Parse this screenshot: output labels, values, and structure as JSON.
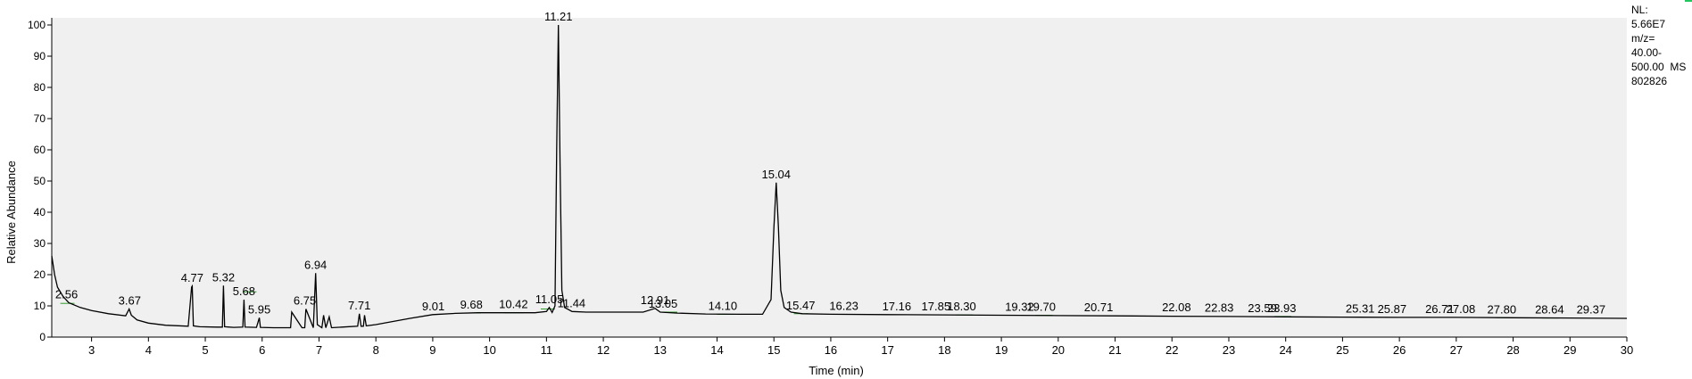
{
  "side_panel": {
    "nl_label": "NL:",
    "nl_value": "5.66E7",
    "mz_label": "m/z=",
    "mz_range_start": "40.00-",
    "mz_range_end": "500.00",
    "scan_type": "MS",
    "file_id": "802826"
  },
  "colors": {
    "plot_background": "#f0f0f0",
    "trace": "#000000",
    "baseline_marks": "#2e9b2e",
    "corner_mark": "#22c55e"
  },
  "chart_data": {
    "type": "line",
    "title": "",
    "xlabel": "Time (min)",
    "ylabel": "Relative Abundance",
    "xlim": [
      2.3,
      30
    ],
    "ylim": [
      0,
      100
    ],
    "xticks": [
      3,
      4,
      5,
      6,
      7,
      8,
      9,
      10,
      11,
      12,
      13,
      14,
      15,
      16,
      17,
      18,
      19,
      20,
      21,
      22,
      23,
      24,
      25,
      26,
      27,
      28,
      29,
      30
    ],
    "yticks": [
      0,
      10,
      20,
      30,
      40,
      50,
      60,
      70,
      80,
      90,
      100
    ],
    "grid": false,
    "legend": "none",
    "trace": {
      "x": [
        2.3,
        2.35,
        2.4,
        2.5,
        2.6,
        2.8,
        3.0,
        3.3,
        3.6,
        3.66,
        3.7,
        3.8,
        4.0,
        4.3,
        4.7,
        4.76,
        4.77,
        4.79,
        4.9,
        5.2,
        5.3,
        5.32,
        5.34,
        5.5,
        5.66,
        5.68,
        5.7,
        5.9,
        5.95,
        5.97,
        6.2,
        6.5,
        6.52,
        6.7,
        6.75,
        6.77,
        6.9,
        6.94,
        6.97,
        7.05,
        7.08,
        7.12,
        7.18,
        7.22,
        7.4,
        7.68,
        7.71,
        7.74,
        7.78,
        7.8,
        7.83,
        8.0,
        8.3,
        8.6,
        9.0,
        9.4,
        9.8,
        10.3,
        10.8,
        11.0,
        11.05,
        11.1,
        11.15,
        11.18,
        11.21,
        11.24,
        11.27,
        11.32,
        11.45,
        11.7,
        12.2,
        12.7,
        12.91,
        13.0,
        13.3,
        13.8,
        14.4,
        14.8,
        14.95,
        15.0,
        15.04,
        15.08,
        15.12,
        15.18,
        15.3,
        15.5,
        16.0,
        17.0,
        18.0,
        19.0,
        20.0,
        21.0,
        22.0,
        23.0,
        24.0,
        25.0,
        26.0,
        27.0,
        28.0,
        29.0,
        30.0
      ],
      "y": [
        26,
        20,
        16,
        13,
        11,
        9.5,
        8.5,
        7.5,
        6.8,
        9,
        7.0,
        5.5,
        4.5,
        3.8,
        3.5,
        16,
        16.3,
        3.6,
        3.3,
        3.2,
        3.2,
        16.5,
        3.3,
        3.1,
        3.2,
        12,
        3.2,
        3.1,
        6.2,
        3.1,
        3.0,
        3.0,
        8.0,
        3.0,
        3.0,
        9.0,
        3.0,
        20.5,
        4.0,
        3.0,
        7.0,
        3.0,
        6.5,
        3.0,
        3.2,
        3.5,
        7.5,
        3.5,
        3.5,
        7.0,
        3.6,
        4.0,
        5.0,
        6.0,
        7.2,
        7.6,
        7.8,
        7.8,
        7.8,
        8.2,
        9.5,
        7.9,
        10,
        60,
        100,
        55,
        15,
        9.5,
        8.2,
        8.0,
        8.0,
        8.0,
        9.2,
        8.0,
        7.7,
        7.4,
        7.3,
        7.3,
        12,
        35,
        49.5,
        35,
        15,
        9.5,
        8.0,
        7.5,
        7.3,
        7.2,
        7.1,
        7.0,
        6.9,
        6.8,
        6.7,
        6.6,
        6.5,
        6.4,
        6.3,
        6.3,
        6.2,
        6.1,
        6.0
      ]
    },
    "peak_labels": [
      {
        "x": 2.56,
        "y": 11.0,
        "label": "2.56"
      },
      {
        "x": 3.67,
        "y": 9.0,
        "label": "3.67"
      },
      {
        "x": 4.77,
        "y": 16.3,
        "label": "4.77"
      },
      {
        "x": 5.32,
        "y": 16.5,
        "label": "5.32"
      },
      {
        "x": 5.68,
        "y": 12.0,
        "label": "5.68"
      },
      {
        "x": 5.95,
        "y": 6.2,
        "label": "5.95"
      },
      {
        "x": 6.75,
        "y": 9.0,
        "label": "6.75"
      },
      {
        "x": 6.94,
        "y": 20.5,
        "label": "6.94"
      },
      {
        "x": 7.71,
        "y": 7.5,
        "label": "7.71"
      },
      {
        "x": 9.01,
        "y": 7.2,
        "label": "9.01"
      },
      {
        "x": 9.68,
        "y": 7.7,
        "label": "9.68"
      },
      {
        "x": 10.42,
        "y": 7.8,
        "label": "10.42"
      },
      {
        "x": 11.05,
        "y": 9.5,
        "label": "11.05"
      },
      {
        "x": 11.21,
        "y": 100,
        "label": "11.21"
      },
      {
        "x": 11.44,
        "y": 8.2,
        "label": "11.44"
      },
      {
        "x": 12.91,
        "y": 9.2,
        "label": "12.91"
      },
      {
        "x": 13.05,
        "y": 8.0,
        "label": "13.05"
      },
      {
        "x": 14.1,
        "y": 7.3,
        "label": "14.10"
      },
      {
        "x": 15.04,
        "y": 49.5,
        "label": "15.04"
      },
      {
        "x": 15.47,
        "y": 7.5,
        "label": "15.47"
      },
      {
        "x": 16.23,
        "y": 7.3,
        "label": "16.23"
      },
      {
        "x": 17.16,
        "y": 7.2,
        "label": "17.16"
      },
      {
        "x": 17.85,
        "y": 7.1,
        "label": "17.85"
      },
      {
        "x": 18.3,
        "y": 7.1,
        "label": "18.30"
      },
      {
        "x": 19.32,
        "y": 7.0,
        "label": "19.32"
      },
      {
        "x": 19.7,
        "y": 7.0,
        "label": "19.70"
      },
      {
        "x": 20.71,
        "y": 6.9,
        "label": "20.71"
      },
      {
        "x": 22.08,
        "y": 6.8,
        "label": "22.08"
      },
      {
        "x": 22.83,
        "y": 6.7,
        "label": "22.83"
      },
      {
        "x": 23.59,
        "y": 6.6,
        "label": "23.59"
      },
      {
        "x": 23.93,
        "y": 6.6,
        "label": "23.93"
      },
      {
        "x": 25.31,
        "y": 6.4,
        "label": "25.31"
      },
      {
        "x": 25.87,
        "y": 6.3,
        "label": "25.87"
      },
      {
        "x": 26.71,
        "y": 6.3,
        "label": "26.71"
      },
      {
        "x": 27.08,
        "y": 6.3,
        "label": "27.08"
      },
      {
        "x": 27.8,
        "y": 6.2,
        "label": "27.80"
      },
      {
        "x": 28.64,
        "y": 6.1,
        "label": "28.64"
      },
      {
        "x": 29.37,
        "y": 6.1,
        "label": "29.37"
      }
    ],
    "baseline_marks": [
      {
        "from": 2.45,
        "to": 2.7,
        "y": 10.8
      },
      {
        "from": 5.66,
        "to": 5.9,
        "y": 14.5
      },
      {
        "from": 9.55,
        "to": 9.85,
        "y": 7.7
      },
      {
        "from": 10.25,
        "to": 10.6,
        "y": 7.8
      },
      {
        "from": 10.9,
        "to": 11.15,
        "y": 9.0
      },
      {
        "from": 13.0,
        "to": 13.3,
        "y": 8.0
      },
      {
        "from": 14.0,
        "to": 14.3,
        "y": 7.3
      },
      {
        "from": 15.35,
        "to": 15.6,
        "y": 7.5
      },
      {
        "from": 16.1,
        "to": 16.4,
        "y": 7.3
      },
      {
        "from": 18.2,
        "to": 18.5,
        "y": 7.1
      },
      {
        "from": 19.6,
        "to": 19.9,
        "y": 7.0
      },
      {
        "from": 23.8,
        "to": 24.1,
        "y": 6.6
      },
      {
        "from": 25.75,
        "to": 26.0,
        "y": 6.3
      },
      {
        "from": 26.95,
        "to": 27.25,
        "y": 6.3
      },
      {
        "from": 27.7,
        "to": 27.95,
        "y": 6.2
      },
      {
        "from": 28.5,
        "to": 28.8,
        "y": 6.1
      }
    ]
  }
}
